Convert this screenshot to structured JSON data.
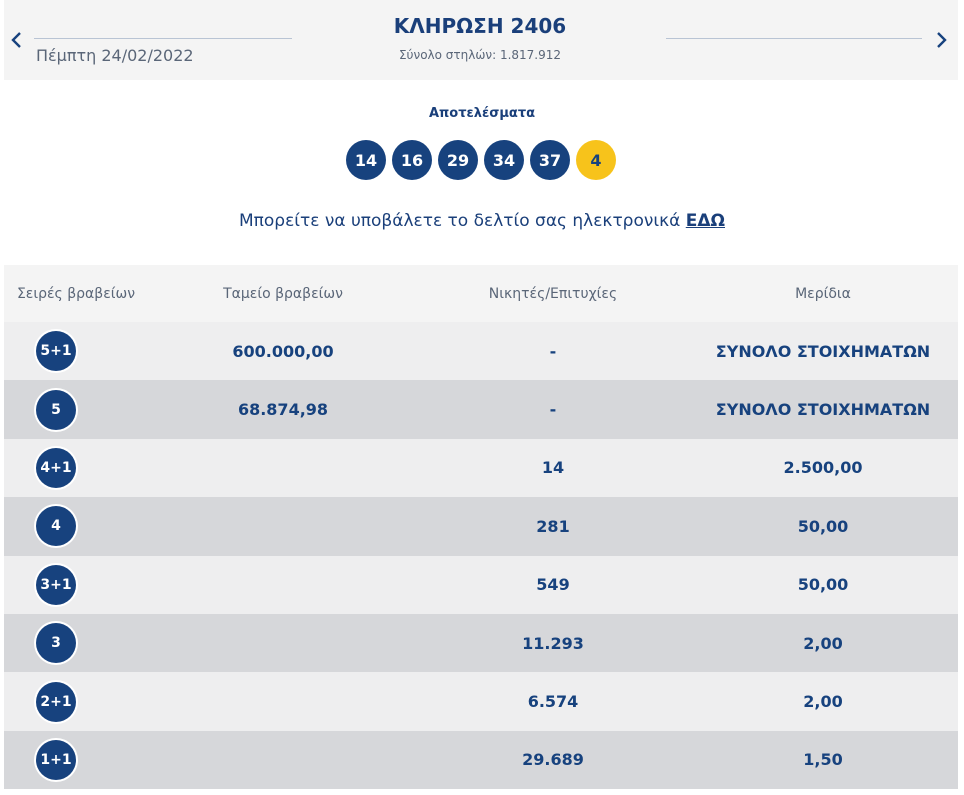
{
  "header": {
    "date": "Πέμπτη 24/02/2022",
    "title": "ΚΛΗΡΩΣΗ 2406",
    "subtitle": "Σύνολο στηλών: 1.817.912",
    "prev_icon": "chevron-left-icon",
    "next_icon": "chevron-right-icon"
  },
  "results": {
    "label": "Αποτελέσματα",
    "numbers": [
      "14",
      "16",
      "29",
      "34",
      "37"
    ],
    "bonus": "4"
  },
  "submit": {
    "text": "Μπορείτε να υποβάλετε το δελτίο σας ηλεκτρονικά",
    "link": "ΕΔΩ"
  },
  "table": {
    "headers": [
      "Σειρές βραβείων",
      "Ταμείο βραβείων",
      "Νικητές/Επιτυχίες",
      "Μερίδια"
    ],
    "rows": [
      {
        "category": "5+1",
        "fund": "600.000,00",
        "winners": "-",
        "share": "ΣΥΝΟΛΟ ΣΤΟΙΧΗΜΑΤΩΝ"
      },
      {
        "category": "5",
        "fund": "68.874,98",
        "winners": "-",
        "share": "ΣΥΝΟΛΟ ΣΤΟΙΧΗΜΑΤΩΝ"
      },
      {
        "category": "4+1",
        "fund": "",
        "winners": "14",
        "share": "2.500,00"
      },
      {
        "category": "4",
        "fund": "",
        "winners": "281",
        "share": "50,00"
      },
      {
        "category": "3+1",
        "fund": "",
        "winners": "549",
        "share": "50,00"
      },
      {
        "category": "3",
        "fund": "",
        "winners": "11.293",
        "share": "2,00"
      },
      {
        "category": "2+1",
        "fund": "",
        "winners": "6.574",
        "share": "2,00"
      },
      {
        "category": "1+1",
        "fund": "",
        "winners": "29.689",
        "share": "1,50"
      }
    ]
  },
  "colors": {
    "primary": "#17427e",
    "bonus": "#f7c31b",
    "row_light": "#eeeeef",
    "row_dark": "#d6d7da"
  }
}
